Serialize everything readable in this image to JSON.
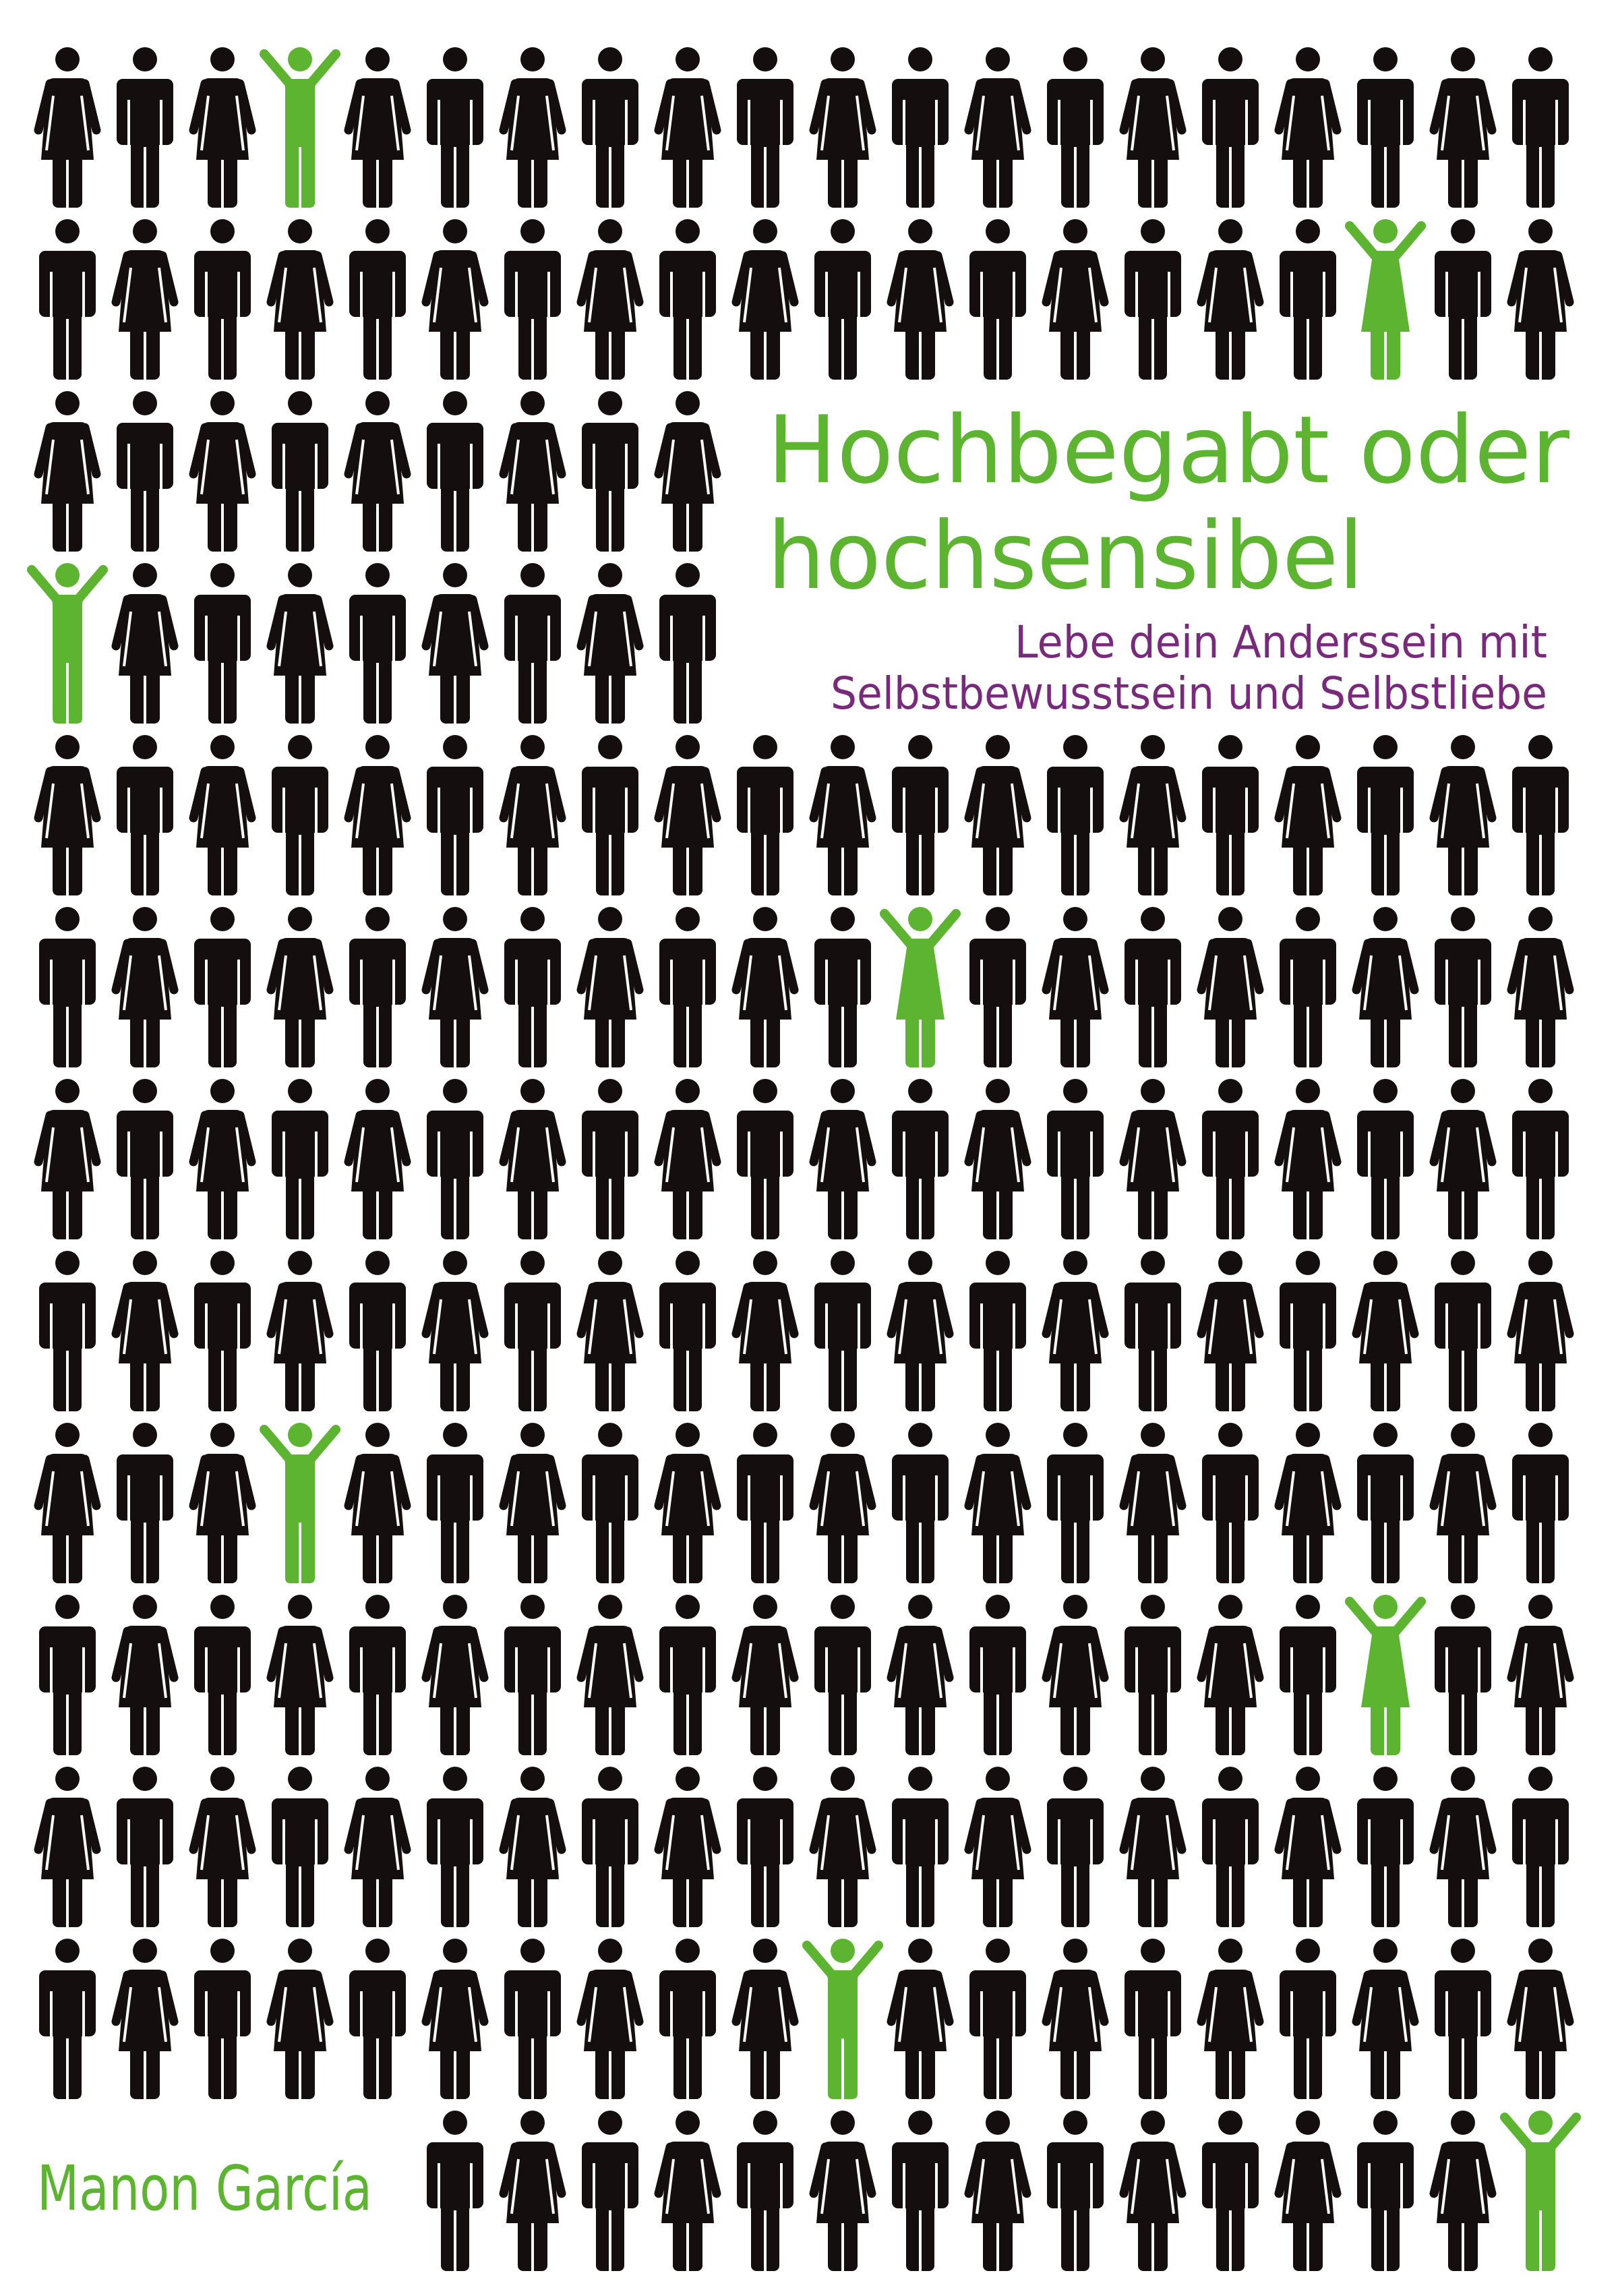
{
  "cover": {
    "title_line1": "Hochbegabt oder",
    "title_line2": "hochsensibel",
    "subtitle_line1": "Lebe dein Anderssein mit",
    "subtitle_line2": "Selbstbewusstsein und Selbstliebe",
    "author": "Manon García"
  },
  "colors": {
    "background": "#ffffff",
    "figure": "#140f0e",
    "highlight": "#5db431",
    "title": "#5db431",
    "subtitle": "#7a2a7d",
    "author": "#5db431"
  },
  "figure_icons": [
    "woman-icon",
    "man-icon",
    "cheering-man-icon",
    "cheering-woman-icon"
  ]
}
